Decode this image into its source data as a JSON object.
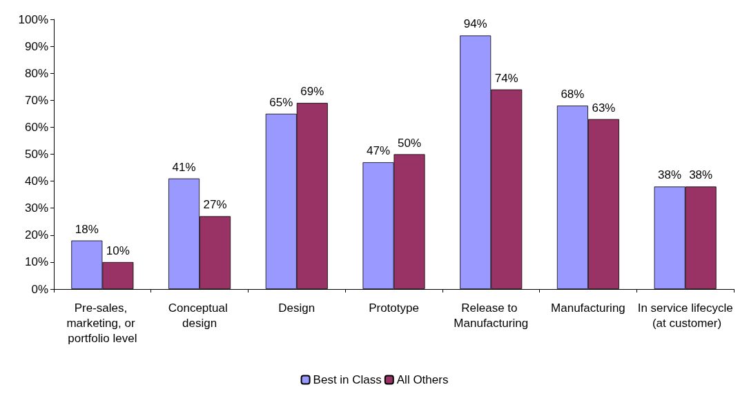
{
  "chart_data": {
    "type": "bar",
    "categories": [
      "Pre-sales, marketing, or portfolio level",
      "Conceptual design",
      "Design",
      "Prototype",
      "Release to Manufacturing",
      "Manufacturing",
      "In service lifecycle (at customer)"
    ],
    "series": [
      {
        "name": "Best in Class",
        "color": "#9999ff",
        "values": [
          18,
          41,
          65,
          47,
          94,
          68,
          38
        ],
        "value_labels": [
          "18%",
          "41%",
          "65%",
          "47%",
          "94%",
          "68%",
          "38%"
        ]
      },
      {
        "name": "All Others",
        "color": "#993366",
        "values": [
          10,
          27,
          69,
          50,
          74,
          63,
          38
        ],
        "value_labels": [
          "10%",
          "27%",
          "69%",
          "50%",
          "74%",
          "63%",
          "38%"
        ]
      }
    ],
    "ylim": [
      0,
      100
    ],
    "yticks": [
      {
        "value": 0,
        "label": "0%"
      },
      {
        "value": 10,
        "label": "10%"
      },
      {
        "value": 20,
        "label": "20%"
      },
      {
        "value": 30,
        "label": "30%"
      },
      {
        "value": 40,
        "label": "40%"
      },
      {
        "value": 50,
        "label": "50%"
      },
      {
        "value": 60,
        "label": "60%"
      },
      {
        "value": 70,
        "label": "70%"
      },
      {
        "value": 80,
        "label": "80%"
      },
      {
        "value": 90,
        "label": "90%"
      },
      {
        "value": 100,
        "label": "100%"
      }
    ],
    "grid": false,
    "legend": "bottom"
  }
}
